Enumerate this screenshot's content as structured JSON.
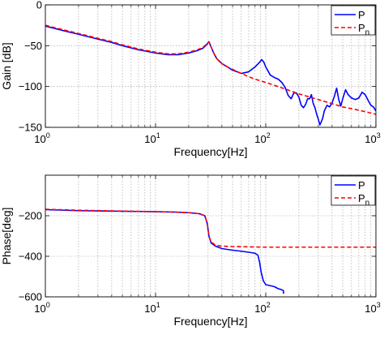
{
  "chart_data": [
    {
      "type": "line",
      "xlabel": "Frequency[Hz]",
      "ylabel": "Gain [dB]",
      "xscale": "log",
      "xlim": [
        1,
        1000
      ],
      "ylim": [
        -150,
        0
      ],
      "yticks": [
        0,
        -50,
        -100,
        -150
      ],
      "xticks": [
        {
          "base": "10",
          "exp": "0"
        },
        {
          "base": "10",
          "exp": "1"
        },
        {
          "base": "10",
          "exp": "2"
        },
        {
          "base": "10",
          "exp": "3"
        }
      ],
      "grid": true,
      "legend": "top-right",
      "series": [
        {
          "name": "P",
          "color": "#0000ff",
          "style": "solid",
          "points": [
            [
              1,
              -26
            ],
            [
              1.5,
              -32
            ],
            [
              2,
              -36
            ],
            [
              3,
              -42
            ],
            [
              4,
              -46
            ],
            [
              5,
              -50
            ],
            [
              7,
              -55
            ],
            [
              10,
              -59
            ],
            [
              13,
              -61
            ],
            [
              16,
              -61
            ],
            [
              20,
              -59
            ],
            [
              24,
              -56
            ],
            [
              27,
              -53
            ],
            [
              29,
              -49
            ],
            [
              30.5,
              -45
            ],
            [
              32,
              -52
            ],
            [
              34,
              -60
            ],
            [
              36,
              -66
            ],
            [
              40,
              -72
            ],
            [
              45,
              -76
            ],
            [
              50,
              -80
            ],
            [
              55,
              -82
            ],
            [
              60,
              -84
            ],
            [
              70,
              -82
            ],
            [
              80,
              -76
            ],
            [
              87,
              -71
            ],
            [
              92,
              -67
            ],
            [
              96,
              -70
            ],
            [
              100,
              -76
            ],
            [
              105,
              -81
            ],
            [
              110,
              -86
            ],
            [
              120,
              -89
            ],
            [
              130,
              -91
            ],
            [
              140,
              -95
            ],
            [
              150,
              -101
            ],
            [
              160,
              -111
            ],
            [
              170,
              -115
            ],
            [
              180,
              -108
            ],
            [
              190,
              -108
            ],
            [
              200,
              -113
            ],
            [
              210,
              -123
            ],
            [
              220,
              -126
            ],
            [
              230,
              -122
            ],
            [
              240,
              -115
            ],
            [
              250,
              -115
            ],
            [
              260,
              -110
            ],
            [
              270,
              -121
            ],
            [
              280,
              -126
            ],
            [
              290,
              -134
            ],
            [
              300,
              -140
            ],
            [
              310,
              -147
            ],
            [
              320,
              -143
            ],
            [
              330,
              -138
            ],
            [
              340,
              -130
            ],
            [
              360,
              -123
            ],
            [
              380,
              -125
            ],
            [
              400,
              -120
            ],
            [
              420,
              -112
            ],
            [
              440,
              -102
            ],
            [
              460,
              -116
            ],
            [
              480,
              -124
            ],
            [
              500,
              -115
            ],
            [
              530,
              -104
            ],
            [
              560,
              -110
            ],
            [
              600,
              -114
            ],
            [
              650,
              -116
            ],
            [
              700,
              -114
            ],
            [
              750,
              -107
            ],
            [
              800,
              -110
            ],
            [
              850,
              -117
            ],
            [
              900,
              -123
            ],
            [
              950,
              -125
            ],
            [
              1000,
              -130
            ]
          ]
        },
        {
          "name": "P_n",
          "label_main": "P",
          "label_sub": "n",
          "color": "#ff0000",
          "style": "dashed",
          "points": [
            [
              1,
              -25
            ],
            [
              1.5,
              -31
            ],
            [
              2,
              -35
            ],
            [
              3,
              -41
            ],
            [
              4,
              -45
            ],
            [
              5,
              -49
            ],
            [
              7,
              -54
            ],
            [
              10,
              -58
            ],
            [
              13,
              -60
            ],
            [
              16,
              -60
            ],
            [
              20,
              -58
            ],
            [
              24,
              -55
            ],
            [
              27,
              -52
            ],
            [
              29,
              -48
            ],
            [
              30.5,
              -45
            ],
            [
              32,
              -52
            ],
            [
              34,
              -60
            ],
            [
              36,
              -66
            ],
            [
              40,
              -72
            ],
            [
              45,
              -76
            ],
            [
              50,
              -79
            ],
            [
              60,
              -84
            ],
            [
              70,
              -88
            ],
            [
              80,
              -91
            ],
            [
              100,
              -95
            ],
            [
              150,
              -103
            ],
            [
              200,
              -109
            ],
            [
              300,
              -116
            ],
            [
              400,
              -121
            ],
            [
              500,
              -125
            ],
            [
              700,
              -129
            ],
            [
              1000,
              -134
            ]
          ]
        }
      ]
    },
    {
      "type": "line",
      "xlabel": "Frequency[Hz]",
      "ylabel": "Phase[deg]",
      "xscale": "log",
      "xlim": [
        1,
        1000
      ],
      "ylim": [
        -600,
        0
      ],
      "yticks": [
        -200,
        -400,
        -600
      ],
      "xticks": [
        {
          "base": "10",
          "exp": "0"
        },
        {
          "base": "10",
          "exp": "1"
        },
        {
          "base": "10",
          "exp": "2"
        },
        {
          "base": "10",
          "exp": "3"
        }
      ],
      "grid": true,
      "legend": "top-right",
      "series": [
        {
          "name": "P",
          "color": "#0000ff",
          "style": "solid",
          "points": [
            [
              1,
              -170
            ],
            [
              2,
              -175
            ],
            [
              5,
              -178
            ],
            [
              10,
              -180
            ],
            [
              15,
              -182
            ],
            [
              20,
              -185
            ],
            [
              25,
              -190
            ],
            [
              28,
              -200
            ],
            [
              29.5,
              -240
            ],
            [
              30.5,
              -300
            ],
            [
              32,
              -335
            ],
            [
              35,
              -350
            ],
            [
              40,
              -362
            ],
            [
              50,
              -370
            ],
            [
              60,
              -375
            ],
            [
              70,
              -380
            ],
            [
              80,
              -385
            ],
            [
              85,
              -395
            ],
            [
              88,
              -430
            ],
            [
              91,
              -480
            ],
            [
              95,
              -520
            ],
            [
              100,
              -540
            ],
            [
              110,
              -545
            ],
            [
              120,
              -550
            ],
            [
              130,
              -560
            ],
            [
              140,
              -565
            ],
            [
              145,
              -570
            ],
            [
              145,
              -585
            ]
          ]
        },
        {
          "name": "P_n",
          "label_main": "P",
          "label_sub": "n",
          "color": "#ff0000",
          "style": "dashed",
          "points": [
            [
              1,
              -168
            ],
            [
              2,
              -173
            ],
            [
              5,
              -177
            ],
            [
              10,
              -180
            ],
            [
              15,
              -182
            ],
            [
              20,
              -185
            ],
            [
              25,
              -190
            ],
            [
              28,
              -200
            ],
            [
              29.5,
              -240
            ],
            [
              30.5,
              -300
            ],
            [
              32,
              -330
            ],
            [
              35,
              -345
            ],
            [
              40,
              -350
            ],
            [
              50,
              -352
            ],
            [
              100,
              -355
            ],
            [
              300,
              -355
            ],
            [
              1000,
              -355
            ]
          ]
        }
      ]
    }
  ]
}
